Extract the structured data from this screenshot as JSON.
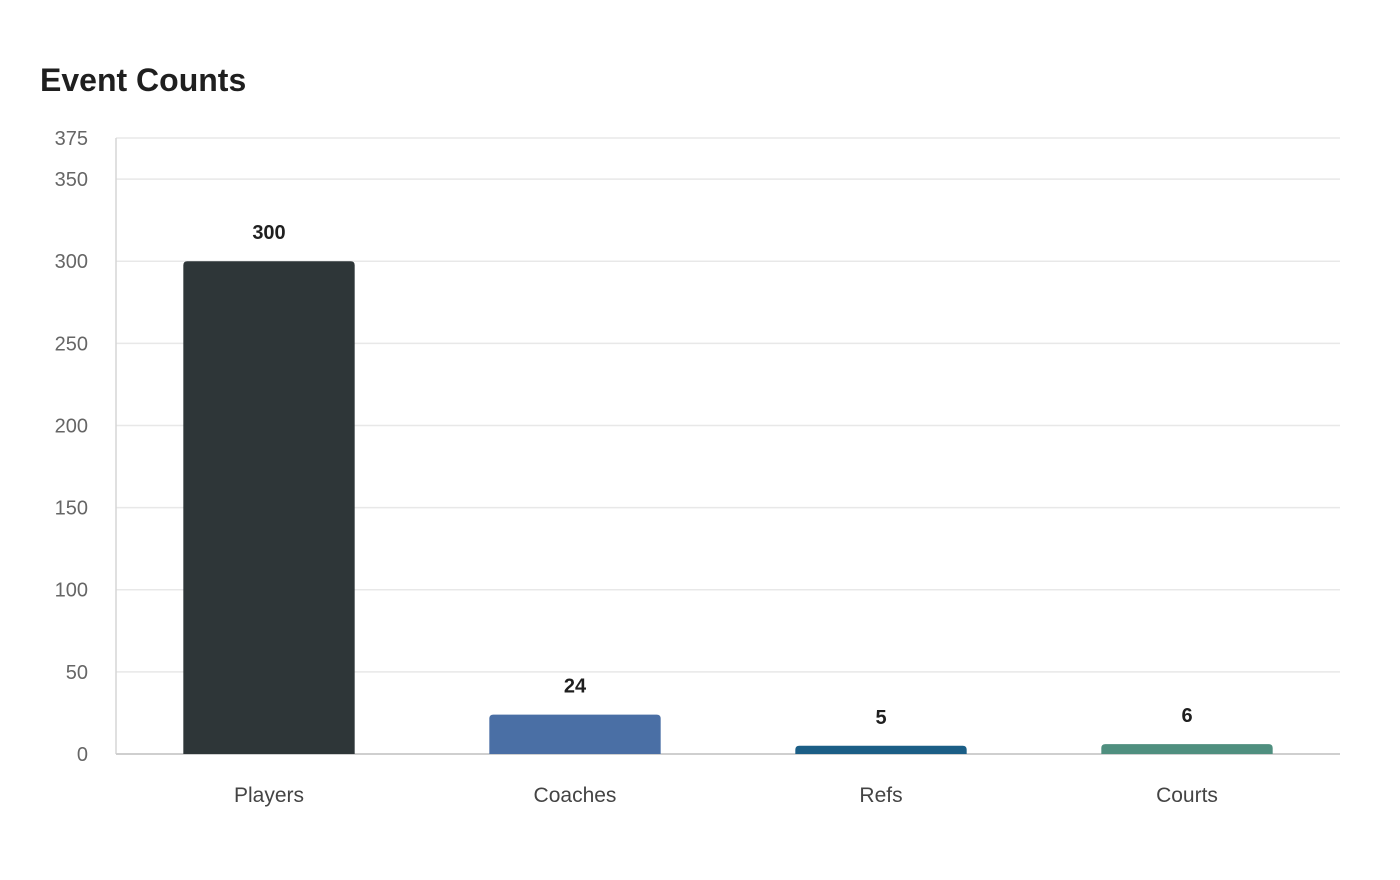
{
  "chart_data": {
    "type": "bar",
    "title": "Event Counts",
    "xlabel": "",
    "ylabel": "",
    "categories": [
      "Players",
      "Coaches",
      "Refs",
      "Courts"
    ],
    "values": [
      300,
      24,
      5,
      6
    ],
    "colors": [
      "#2e3638",
      "#4a6fa5",
      "#1b5e86",
      "#4f8f7f"
    ],
    "ylim": [
      0,
      375
    ],
    "yticks": [
      0,
      50,
      100,
      150,
      200,
      250,
      300,
      350,
      375
    ],
    "grid": true,
    "legend": "none"
  }
}
